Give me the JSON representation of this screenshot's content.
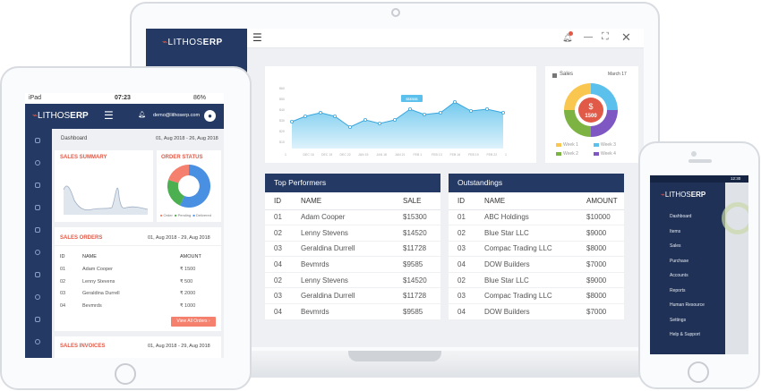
{
  "brand": {
    "name_light": "LITHOS",
    "name_bold": "ERP",
    "accent": "#e05a47",
    "navy": "#243a64"
  },
  "laptop": {
    "donut": {
      "title": "Sales",
      "date": "March 17",
      "center": "1500",
      "currency": "$",
      "legend": [
        "Week 1",
        "Week 3",
        "Week 2",
        "Week 4"
      ]
    },
    "chart": {
      "y_ticks": [
        "$60",
        "$50",
        "$40",
        "$30",
        "$20",
        "$10"
      ],
      "x_ticks": [
        "1",
        "DEC 16",
        "DEC 19",
        "DEC 22",
        "JAN 15",
        "JAN 18",
        "JAN 21",
        "FEB 1",
        "FEB 13",
        "FEB 16",
        "FEB 19",
        "FEB 22",
        "1"
      ],
      "tooltip": "$$$$$$"
    },
    "top_performers": {
      "title": "Top Performers",
      "columns": [
        "ID",
        "NAME",
        "SALE"
      ],
      "rows": [
        [
          "01",
          "Adam Cooper",
          "$15300"
        ],
        [
          "02",
          "Lenny Stevens",
          "$14520"
        ],
        [
          "03",
          "Geraldina Durrell",
          "$11728"
        ],
        [
          "04",
          "Bevmrds",
          "$9585"
        ],
        [
          "02",
          "Lenny Stevens",
          "$14520"
        ],
        [
          "03",
          "Geraldina Durrell",
          "$11728"
        ],
        [
          "04",
          "Bevmrds",
          "$9585"
        ]
      ]
    },
    "outstandings": {
      "title": "Outstandings",
      "columns": [
        "ID",
        "NAME",
        "AMOUNT"
      ],
      "rows": [
        [
          "01",
          "ABC Holdings",
          "$10000"
        ],
        [
          "02",
          "Blue Star LLC",
          "$9000"
        ],
        [
          "03",
          "Compac Trading LLC",
          "$8000"
        ],
        [
          "04",
          "DOW Builders",
          "$7000"
        ],
        [
          "02",
          "Blue Star LLC",
          "$9000"
        ],
        [
          "03",
          "Compac Trading LLC",
          "$8000"
        ],
        [
          "04",
          "DOW Builders",
          "$7000"
        ]
      ]
    }
  },
  "tablet": {
    "status": {
      "carrier": "iPad",
      "time": "07:23",
      "battery": "86%"
    },
    "user_email": "demo@lithoserp.com",
    "breadcrumb": "Dashboard",
    "date_range": "01, Aug 2018 - 26, Aug 2018",
    "sales_summary": "SALES SUMMARY",
    "order_status": "ORDER STATUS",
    "order_legend": [
      "Order",
      "Pending",
      "Delivered"
    ],
    "sales_orders": {
      "title": "SALES ORDERS",
      "date_range": "01, Aug 2018 - 29, Aug 2018",
      "columns": [
        "ID",
        "NAME",
        "AMOUNT"
      ],
      "rows": [
        [
          "01",
          "Adam Cooper",
          "₹ 1500"
        ],
        [
          "02",
          "Lenny Stevens",
          "₹ 500"
        ],
        [
          "03",
          "Geraldina Durrell",
          "₹ 2000"
        ],
        [
          "04",
          "Bevmrds",
          "₹ 1000"
        ]
      ],
      "button": "View All Orders"
    },
    "sales_invoices": {
      "title": "SALES INVOICES",
      "date_range": "01, Aug 2018 - 29, Aug 2018"
    }
  },
  "phone": {
    "status_time": "12:30",
    "menu": [
      "Dashboard",
      "Items",
      "Sales",
      "Purchase",
      "Accounts",
      "Reports",
      "Human Resource",
      "Settings",
      "Help & Support"
    ]
  }
}
